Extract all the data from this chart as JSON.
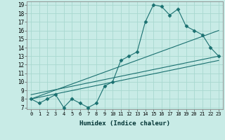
{
  "xlabel": "Humidex (Indice chaleur)",
  "bg_color": "#c8ebe6",
  "grid_color": "#a8d8d0",
  "line_color": "#1a7070",
  "x_data": [
    0,
    1,
    2,
    3,
    4,
    5,
    6,
    7,
    8,
    9,
    10,
    11,
    12,
    13,
    14,
    15,
    16,
    17,
    18,
    19,
    20,
    21,
    22,
    23
  ],
  "y_main": [
    8.0,
    7.5,
    8.0,
    8.5,
    7.0,
    8.0,
    7.5,
    7.0,
    7.5,
    9.5,
    10.0,
    12.5,
    13.0,
    13.5,
    17.0,
    19.0,
    18.8,
    17.8,
    18.5,
    16.5,
    16.0,
    15.5,
    14.0,
    13.0
  ],
  "straight_lines": [
    {
      "x": [
        0,
        23
      ],
      "y": [
        8.0,
        12.5
      ]
    },
    {
      "x": [
        0,
        23
      ],
      "y": [
        8.5,
        13.0
      ]
    },
    {
      "x": [
        0,
        23
      ],
      "y": [
        8.0,
        16.0
      ]
    }
  ],
  "xlim": [
    -0.5,
    23.5
  ],
  "ylim": [
    6.8,
    19.4
  ],
  "xticks": [
    0,
    1,
    2,
    3,
    4,
    5,
    6,
    7,
    8,
    9,
    10,
    11,
    12,
    13,
    14,
    15,
    16,
    17,
    18,
    19,
    20,
    21,
    22,
    23
  ],
  "yticks": [
    7,
    8,
    9,
    10,
    11,
    12,
    13,
    14,
    15,
    16,
    17,
    18,
    19
  ]
}
